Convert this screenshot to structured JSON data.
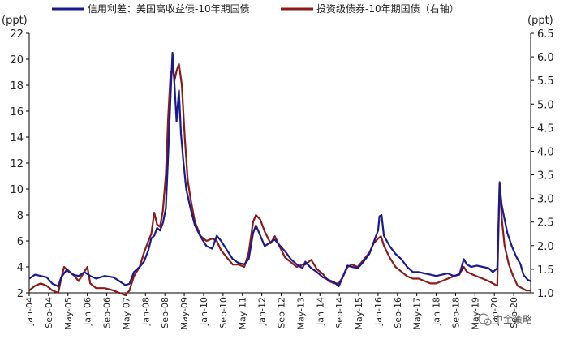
{
  "chart_data": {
    "type": "line",
    "title": "",
    "left_axis": {
      "unit": "(ppt)",
      "ylim": [
        2,
        22
      ],
      "ticks": [
        2,
        4,
        6,
        8,
        10,
        12,
        14,
        16,
        18,
        20,
        22
      ]
    },
    "right_axis": {
      "unit": "(ppt)",
      "ylim": [
        1.0,
        6.5
      ],
      "ticks": [
        "1.0",
        "1.5",
        "2.0",
        "2.5",
        "3.0",
        "3.5",
        "4.0",
        "4.5",
        "5.0",
        "5.5",
        "6.0",
        "6.5"
      ]
    },
    "x_range": [
      2004.0,
      2021.25
    ],
    "x_tick_labels": [
      "Jan-04",
      "Sep-04",
      "May-05",
      "Jan-06",
      "Sep-06",
      "May-07",
      "Jan-08",
      "Sep-08",
      "May-09",
      "Jan-10",
      "Sep-10",
      "May-11",
      "Jan-12",
      "Sep-12",
      "May-13",
      "Jan-14",
      "Sep-14",
      "May-15",
      "Jan-16",
      "Sep-16",
      "May-17",
      "Jan-18",
      "Sep-18",
      "May-19",
      "Jan-20",
      "Sep-20"
    ],
    "x_tick_values": [
      2004.0,
      2004.667,
      2005.333,
      2006.0,
      2006.667,
      2007.333,
      2008.0,
      2008.667,
      2009.333,
      2010.0,
      2010.667,
      2011.333,
      2012.0,
      2012.667,
      2013.333,
      2014.0,
      2014.667,
      2015.333,
      2016.0,
      2016.667,
      2017.333,
      2018.0,
      2018.667,
      2019.333,
      2020.0,
      2020.667
    ],
    "series": [
      {
        "name": "信用利差：美国高收益债-10年期国债",
        "axis": "left",
        "color": "#1a1a8c",
        "points": [
          [
            2004.0,
            3.1
          ],
          [
            2004.2,
            3.4
          ],
          [
            2004.4,
            3.3
          ],
          [
            2004.6,
            3.2
          ],
          [
            2004.8,
            2.7
          ],
          [
            2005.0,
            2.5
          ],
          [
            2005.1,
            3.2
          ],
          [
            2005.2,
            3.5
          ],
          [
            2005.3,
            3.8
          ],
          [
            2005.5,
            3.4
          ],
          [
            2005.7,
            3.3
          ],
          [
            2005.9,
            3.6
          ],
          [
            2006.1,
            3.3
          ],
          [
            2006.3,
            3.1
          ],
          [
            2006.6,
            3.3
          ],
          [
            2006.9,
            3.2
          ],
          [
            2007.1,
            2.9
          ],
          [
            2007.3,
            2.6
          ],
          [
            2007.45,
            2.7
          ],
          [
            2007.6,
            3.6
          ],
          [
            2007.8,
            4.0
          ],
          [
            2007.95,
            4.4
          ],
          [
            2008.1,
            5.3
          ],
          [
            2008.2,
            6.2
          ],
          [
            2008.3,
            6.4
          ],
          [
            2008.4,
            7.0
          ],
          [
            2008.5,
            6.8
          ],
          [
            2008.6,
            7.4
          ],
          [
            2008.7,
            8.5
          ],
          [
            2008.78,
            12.5
          ],
          [
            2008.86,
            17.0
          ],
          [
            2008.93,
            20.5
          ],
          [
            2009.0,
            18.0
          ],
          [
            2009.07,
            15.2
          ],
          [
            2009.15,
            17.6
          ],
          [
            2009.22,
            14.3
          ],
          [
            2009.3,
            12.2
          ],
          [
            2009.4,
            10.0
          ],
          [
            2009.55,
            8.5
          ],
          [
            2009.7,
            7.2
          ],
          [
            2009.9,
            6.3
          ],
          [
            2010.1,
            5.6
          ],
          [
            2010.3,
            5.4
          ],
          [
            2010.45,
            6.4
          ],
          [
            2010.6,
            6.0
          ],
          [
            2010.8,
            5.3
          ],
          [
            2011.0,
            4.6
          ],
          [
            2011.2,
            4.3
          ],
          [
            2011.4,
            4.2
          ],
          [
            2011.55,
            4.6
          ],
          [
            2011.7,
            6.6
          ],
          [
            2011.8,
            7.2
          ],
          [
            2011.95,
            6.4
          ],
          [
            2012.1,
            5.6
          ],
          [
            2012.3,
            5.9
          ],
          [
            2012.45,
            6.1
          ],
          [
            2012.6,
            5.7
          ],
          [
            2012.8,
            5.2
          ],
          [
            2013.0,
            4.6
          ],
          [
            2013.2,
            4.2
          ],
          [
            2013.4,
            3.9
          ],
          [
            2013.5,
            4.4
          ],
          [
            2013.7,
            3.9
          ],
          [
            2013.9,
            3.6
          ],
          [
            2014.1,
            3.2
          ],
          [
            2014.3,
            3.0
          ],
          [
            2014.5,
            2.8
          ],
          [
            2014.65,
            2.5
          ],
          [
            2014.8,
            3.3
          ],
          [
            2014.95,
            4.1
          ],
          [
            2015.1,
            4.0
          ],
          [
            2015.3,
            3.9
          ],
          [
            2015.5,
            4.4
          ],
          [
            2015.7,
            5.0
          ],
          [
            2015.85,
            5.9
          ],
          [
            2016.0,
            6.8
          ],
          [
            2016.05,
            7.9
          ],
          [
            2016.12,
            8.0
          ],
          [
            2016.2,
            6.4
          ],
          [
            2016.4,
            5.6
          ],
          [
            2016.6,
            5.0
          ],
          [
            2016.8,
            4.6
          ],
          [
            2017.0,
            4.0
          ],
          [
            2017.2,
            3.6
          ],
          [
            2017.4,
            3.6
          ],
          [
            2017.6,
            3.5
          ],
          [
            2017.8,
            3.4
          ],
          [
            2018.0,
            3.3
          ],
          [
            2018.2,
            3.4
          ],
          [
            2018.4,
            3.5
          ],
          [
            2018.6,
            3.3
          ],
          [
            2018.8,
            3.4
          ],
          [
            2018.95,
            4.6
          ],
          [
            2019.05,
            4.2
          ],
          [
            2019.2,
            4.0
          ],
          [
            2019.4,
            4.1
          ],
          [
            2019.6,
            4.0
          ],
          [
            2019.8,
            3.9
          ],
          [
            2019.95,
            3.6
          ],
          [
            2020.1,
            3.9
          ],
          [
            2020.18,
            10.4
          ],
          [
            2020.25,
            8.8
          ],
          [
            2020.33,
            7.9
          ],
          [
            2020.45,
            6.6
          ],
          [
            2020.6,
            5.6
          ],
          [
            2020.75,
            4.8
          ],
          [
            2020.9,
            4.2
          ],
          [
            2021.0,
            3.4
          ],
          [
            2021.15,
            3.0
          ],
          [
            2021.25,
            2.9
          ]
        ]
      },
      {
        "name": "投资级债券-10年期国债（右轴）",
        "axis": "right",
        "color": "#8b1a1a",
        "points": [
          [
            2004.0,
            1.05
          ],
          [
            2004.2,
            1.15
          ],
          [
            2004.4,
            1.2
          ],
          [
            2004.6,
            1.15
          ],
          [
            2004.8,
            1.05
          ],
          [
            2005.0,
            1.0
          ],
          [
            2005.1,
            1.3
          ],
          [
            2005.2,
            1.55
          ],
          [
            2005.35,
            1.45
          ],
          [
            2005.5,
            1.4
          ],
          [
            2005.7,
            1.25
          ],
          [
            2005.85,
            1.4
          ],
          [
            2006.0,
            1.55
          ],
          [
            2006.1,
            1.2
          ],
          [
            2006.3,
            1.1
          ],
          [
            2006.6,
            1.1
          ],
          [
            2006.9,
            1.05
          ],
          [
            2007.1,
            1.0
          ],
          [
            2007.3,
            0.95
          ],
          [
            2007.45,
            1.05
          ],
          [
            2007.6,
            1.35
          ],
          [
            2007.8,
            1.55
          ],
          [
            2007.95,
            1.85
          ],
          [
            2008.1,
            2.1
          ],
          [
            2008.2,
            2.25
          ],
          [
            2008.3,
            2.7
          ],
          [
            2008.4,
            2.45
          ],
          [
            2008.5,
            2.4
          ],
          [
            2008.6,
            2.75
          ],
          [
            2008.7,
            3.5
          ],
          [
            2008.78,
            4.7
          ],
          [
            2008.86,
            5.6
          ],
          [
            2008.93,
            5.8
          ],
          [
            2009.0,
            5.5
          ],
          [
            2009.07,
            5.7
          ],
          [
            2009.15,
            5.85
          ],
          [
            2009.25,
            5.4
          ],
          [
            2009.35,
            4.3
          ],
          [
            2009.45,
            3.4
          ],
          [
            2009.55,
            3.0
          ],
          [
            2009.7,
            2.5
          ],
          [
            2009.9,
            2.2
          ],
          [
            2010.1,
            2.1
          ],
          [
            2010.3,
            2.15
          ],
          [
            2010.45,
            2.1
          ],
          [
            2010.6,
            1.9
          ],
          [
            2010.8,
            1.75
          ],
          [
            2011.0,
            1.6
          ],
          [
            2011.2,
            1.6
          ],
          [
            2011.4,
            1.55
          ],
          [
            2011.55,
            1.85
          ],
          [
            2011.7,
            2.5
          ],
          [
            2011.8,
            2.65
          ],
          [
            2011.95,
            2.55
          ],
          [
            2012.1,
            2.3
          ],
          [
            2012.3,
            2.05
          ],
          [
            2012.45,
            2.2
          ],
          [
            2012.6,
            2.0
          ],
          [
            2012.8,
            1.75
          ],
          [
            2013.0,
            1.65
          ],
          [
            2013.2,
            1.55
          ],
          [
            2013.4,
            1.6
          ],
          [
            2013.5,
            1.6
          ],
          [
            2013.7,
            1.7
          ],
          [
            2013.9,
            1.5
          ],
          [
            2014.1,
            1.4
          ],
          [
            2014.3,
            1.25
          ],
          [
            2014.5,
            1.2
          ],
          [
            2014.65,
            1.2
          ],
          [
            2014.8,
            1.35
          ],
          [
            2014.95,
            1.55
          ],
          [
            2015.1,
            1.6
          ],
          [
            2015.3,
            1.55
          ],
          [
            2015.5,
            1.7
          ],
          [
            2015.7,
            1.85
          ],
          [
            2015.85,
            2.05
          ],
          [
            2016.0,
            2.15
          ],
          [
            2016.1,
            2.2
          ],
          [
            2016.2,
            2.0
          ],
          [
            2016.4,
            1.75
          ],
          [
            2016.6,
            1.55
          ],
          [
            2016.8,
            1.45
          ],
          [
            2017.0,
            1.35
          ],
          [
            2017.2,
            1.3
          ],
          [
            2017.4,
            1.3
          ],
          [
            2017.6,
            1.25
          ],
          [
            2017.8,
            1.2
          ],
          [
            2018.0,
            1.2
          ],
          [
            2018.2,
            1.25
          ],
          [
            2018.4,
            1.3
          ],
          [
            2018.6,
            1.35
          ],
          [
            2018.8,
            1.4
          ],
          [
            2018.95,
            1.55
          ],
          [
            2019.05,
            1.45
          ],
          [
            2019.2,
            1.4
          ],
          [
            2019.4,
            1.35
          ],
          [
            2019.6,
            1.3
          ],
          [
            2019.8,
            1.25
          ],
          [
            2019.95,
            1.2
          ],
          [
            2020.1,
            1.15
          ],
          [
            2020.18,
            3.35
          ],
          [
            2020.25,
            2.6
          ],
          [
            2020.35,
            2.0
          ],
          [
            2020.5,
            1.6
          ],
          [
            2020.65,
            1.35
          ],
          [
            2020.8,
            1.15
          ],
          [
            2020.95,
            1.1
          ],
          [
            2021.1,
            1.05
          ],
          [
            2021.25,
            1.05
          ]
        ]
      }
    ],
    "legend_position": "top"
  },
  "watermark": {
    "text": "中金策略"
  }
}
